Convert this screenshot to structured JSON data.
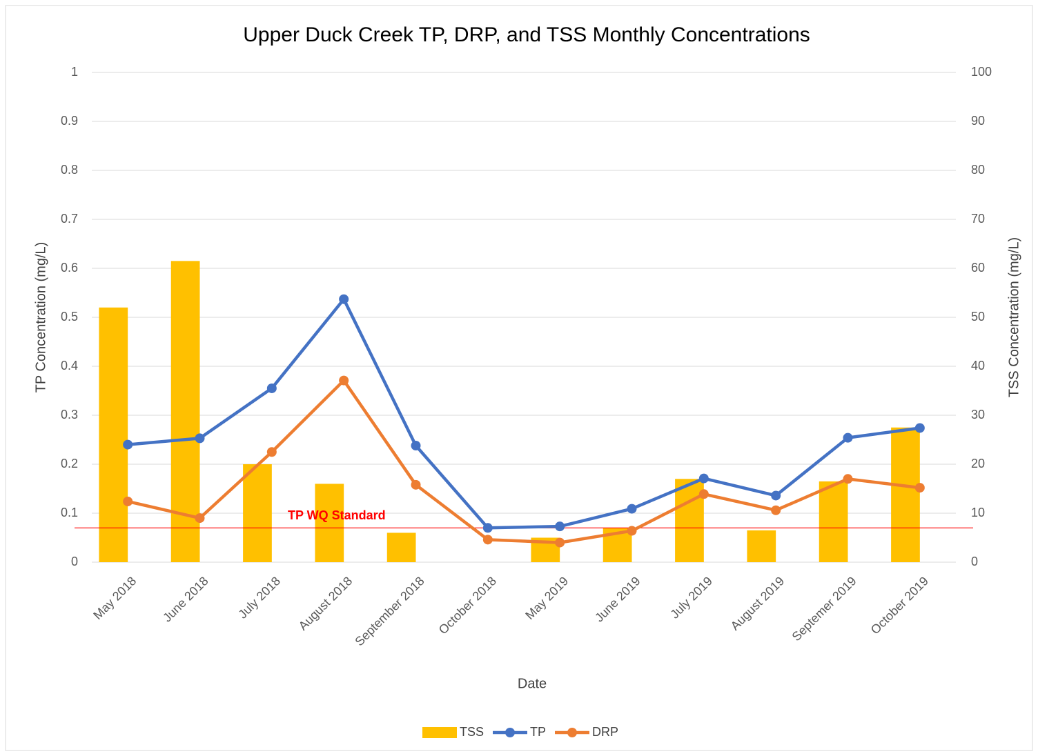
{
  "chart_data": {
    "type": "bar_line_combo",
    "title": "Upper Duck Creek TP, DRP, and TSS Monthly Concentrations",
    "x_label": "Date",
    "y_label": "TP Concentration (mg/L)",
    "y2_label": "TSS Concentration (mg/L)",
    "categories": [
      "May 2018",
      "June 2018",
      "July 2018",
      "August 2018",
      "September 2018",
      "October 2018",
      "May 2019",
      "June 2019",
      "July 2019",
      "August 2019",
      "Septemer 2019",
      "October 2019"
    ],
    "series": [
      {
        "name": "TSS",
        "type": "bar",
        "axis": "y2",
        "color": "#ffc000",
        "values": [
          52,
          61.5,
          20,
          16,
          6,
          0,
          5,
          7,
          17,
          6.5,
          16.5,
          27.5
        ]
      },
      {
        "name": "TP",
        "type": "line",
        "axis": "y",
        "color": "#4472c4",
        "values": [
          0.24,
          0.253,
          0.355,
          0.537,
          0.238,
          0.07,
          0.073,
          0.109,
          0.171,
          0.136,
          0.254,
          0.274
        ]
      },
      {
        "name": "DRP",
        "type": "line",
        "axis": "y",
        "color": "#ed7d31",
        "values": [
          0.124,
          0.09,
          0.225,
          0.371,
          0.158,
          0.046,
          0.04,
          0.064,
          0.139,
          0.106,
          0.17,
          0.152
        ]
      }
    ],
    "reference_lines": [
      {
        "value": 0.07,
        "label": "TP WQ Standard",
        "color": "#ff0000"
      }
    ],
    "ylim": [
      0,
      1
    ],
    "yticks": [
      0,
      0.1,
      0.2,
      0.3,
      0.4,
      0.5,
      0.6,
      0.7,
      0.8,
      0.9,
      1
    ],
    "y2lim": [
      0,
      100
    ],
    "y2ticks": [
      0,
      10,
      20,
      30,
      40,
      50,
      60,
      70,
      80,
      90,
      100
    ],
    "grid": true,
    "legend": "bottom"
  }
}
